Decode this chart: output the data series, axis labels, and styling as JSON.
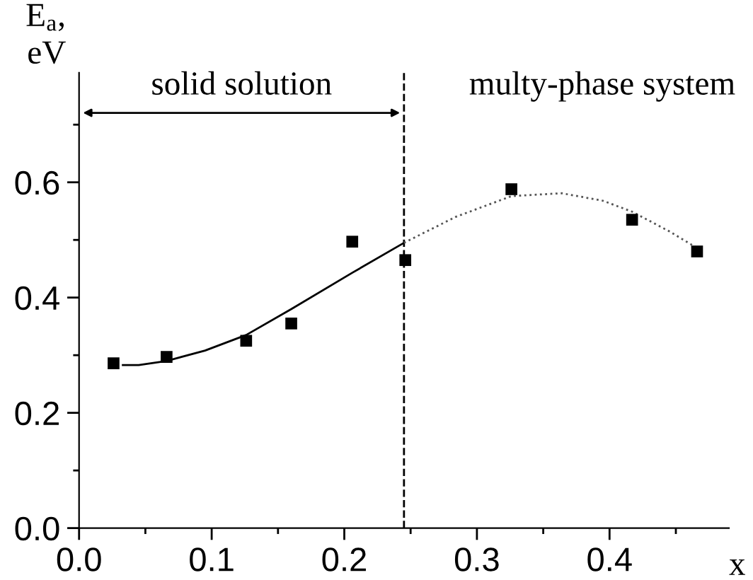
{
  "chart_data": {
    "type": "scatter",
    "xlabel": "x",
    "ylabel": "E$_{a}$,\neV",
    "xlim": [
      0,
      0.49
    ],
    "ylim": [
      0,
      0.79
    ],
    "xticks": [
      {
        "value": 0,
        "label": "0.0"
      },
      {
        "value": 0.05,
        "label": null
      },
      0.1,
      {
        "value": 0.15,
        "label": null
      },
      0.2,
      {
        "value": 0.25,
        "label": null
      },
      0.3,
      {
        "value": 0.35,
        "label": null
      },
      0.4,
      {
        "value": 0.45,
        "label": null
      }
    ],
    "yticks": [
      {
        "value": 0,
        "label": "0.0"
      },
      {
        "value": 0.1,
        "label": null
      },
      0.2,
      {
        "value": 0.3,
        "label": null
      },
      0.4,
      {
        "value": 0.5,
        "label": null
      },
      0.6,
      {
        "value": 0.7,
        "label": null
      }
    ],
    "series": [
      {
        "color": "#000000",
        "marker": "square",
        "x": [
          0.026,
          0.066,
          0.126,
          0.16,
          0.206,
          0.246,
          0.326,
          0.417,
          0.466
        ],
        "values": [
          0.286,
          0.297,
          0.325,
          0.355,
          0.497,
          0.465,
          0.588,
          0.535,
          0.48
        ]
      },
      {
        "type": "line",
        "color": "#000000",
        "marker": "none",
        "line_style": "solid",
        "x": [
          0.033,
          0.045,
          0.066,
          0.095,
          0.126,
          0.16,
          0.206,
          0.245
        ],
        "values": [
          0.283,
          0.283,
          0.29,
          0.308,
          0.335,
          0.38,
          0.443,
          0.495
        ]
      },
      {
        "type": "line",
        "color": "#555555",
        "marker": "none",
        "line_style": "dotted",
        "x": [
          0.245,
          0.284,
          0.326,
          0.364,
          0.395,
          0.417,
          0.445,
          0.466
        ],
        "values": [
          0.495,
          0.54,
          0.576,
          0.581,
          0.568,
          0.549,
          0.515,
          0.486
        ]
      }
    ],
    "ref_lines": [
      {
        "axis": "x",
        "value": 0.245,
        "line_style": "dashed",
        "color": "#000000"
      }
    ],
    "annotations": [
      "solid solution",
      "multy-phase system"
    ],
    "grid": false,
    "legend": false
  }
}
